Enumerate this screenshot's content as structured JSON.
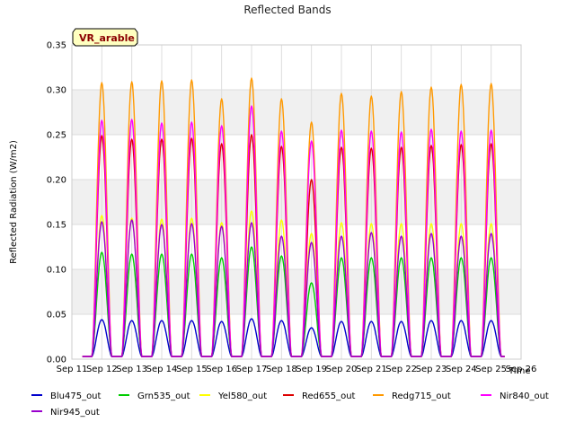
{
  "chart_data": {
    "type": "line",
    "title": "Reflected Bands",
    "xlabel": "Time",
    "ylabel": "Reflected Radiation (W/m2)",
    "badge": "VR_arable",
    "ylim": [
      0.0,
      0.35
    ],
    "yticks": [
      "0.00",
      "0.05",
      "0.10",
      "0.15",
      "0.20",
      "0.25",
      "0.30",
      "0.35"
    ],
    "xlim": [
      11,
      26
    ],
    "xticks": [
      "Sep 11",
      "Sep 12",
      "Sep 13",
      "Sep 14",
      "Sep 15",
      "Sep 16",
      "Sep 17",
      "Sep 18",
      "Sep 19",
      "Sep 20",
      "Sep 21",
      "Sep 22",
      "Sep 23",
      "Sep 24",
      "Sep 25",
      "Sep 26"
    ],
    "grid": true,
    "legend_position": "bottom",
    "days": [
      12,
      13,
      14,
      15,
      16,
      17,
      18,
      19,
      20,
      21,
      22,
      23,
      24,
      25
    ],
    "series": [
      {
        "name": "Blu475_out",
        "color": "#0000cc",
        "peaks": [
          0.044,
          0.043,
          0.043,
          0.043,
          0.042,
          0.045,
          0.043,
          0.035,
          0.042,
          0.042,
          0.042,
          0.043,
          0.043,
          0.043
        ]
      },
      {
        "name": "Grn535_out",
        "color": "#00cc00",
        "peaks": [
          0.119,
          0.117,
          0.117,
          0.117,
          0.113,
          0.125,
          0.115,
          0.085,
          0.113,
          0.113,
          0.113,
          0.113,
          0.113,
          0.113
        ]
      },
      {
        "name": "Yel580_out",
        "color": "#ffff00",
        "peaks": [
          0.16,
          0.157,
          0.156,
          0.157,
          0.152,
          0.165,
          0.155,
          0.14,
          0.152,
          0.151,
          0.151,
          0.151,
          0.151,
          0.151
        ]
      },
      {
        "name": "Red655_out",
        "color": "#dd0000",
        "peaks": [
          0.249,
          0.245,
          0.245,
          0.246,
          0.24,
          0.25,
          0.237,
          0.2,
          0.236,
          0.235,
          0.236,
          0.238,
          0.239,
          0.24
        ]
      },
      {
        "name": "Redg715_out",
        "color": "#ff9900",
        "peaks": [
          0.308,
          0.309,
          0.31,
          0.311,
          0.29,
          0.313,
          0.29,
          0.264,
          0.296,
          0.293,
          0.298,
          0.303,
          0.306,
          0.307
        ]
      },
      {
        "name": "Nir840_out",
        "color": "#ff00ff",
        "peaks": [
          0.266,
          0.267,
          0.263,
          0.264,
          0.26,
          0.282,
          0.254,
          0.243,
          0.255,
          0.254,
          0.253,
          0.256,
          0.254,
          0.255
        ]
      },
      {
        "name": "Nir945_out",
        "color": "#9900cc",
        "peaks": [
          0.153,
          0.155,
          0.15,
          0.151,
          0.148,
          0.152,
          0.137,
          0.13,
          0.137,
          0.141,
          0.137,
          0.14,
          0.137,
          0.14
        ]
      }
    ]
  }
}
